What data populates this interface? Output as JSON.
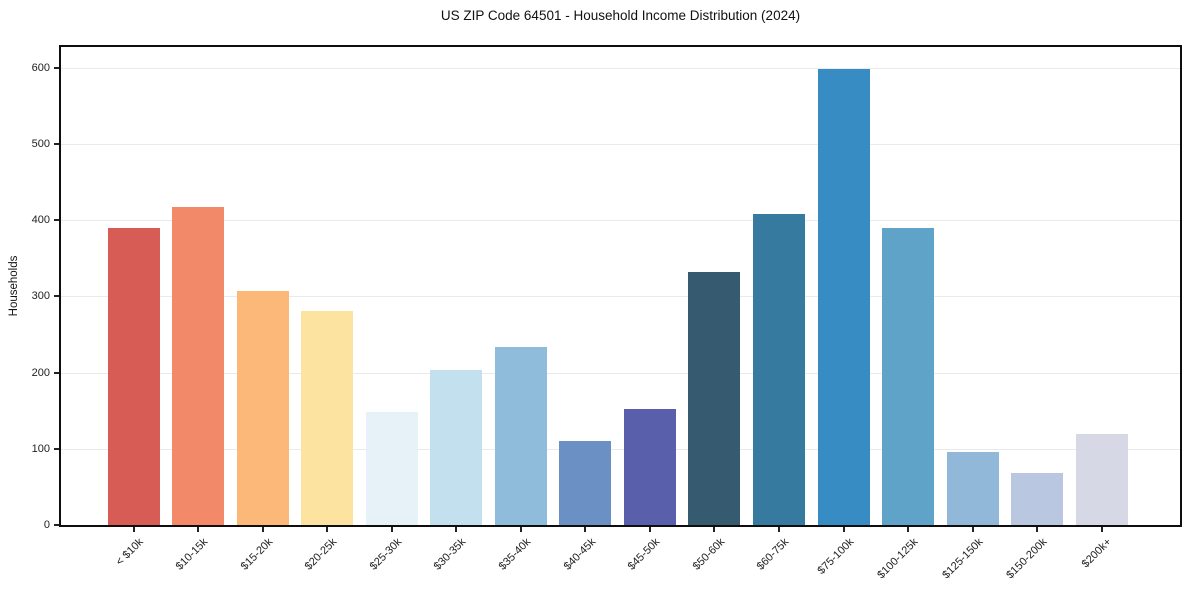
{
  "chart_data": {
    "type": "bar",
    "title": "US ZIP Code 64501 - Household Income Distribution (2024)",
    "xlabel": "",
    "ylabel": "Households",
    "categories": [
      "< $10k",
      "$10-15k",
      "$15-20k",
      "$20-25k",
      "$25-30k",
      "$30-35k",
      "$35-40k",
      "$40-45k",
      "$45-50k",
      "$50-60k",
      "$60-75k",
      "$75-100k",
      "$100-125k",
      "$125-150k",
      "$150-200k",
      "$200k+"
    ],
    "values": [
      390,
      417,
      307,
      281,
      148,
      203,
      233,
      110,
      152,
      332,
      408,
      598,
      390,
      96,
      68,
      120
    ],
    "bar_colors": [
      "#d65c55",
      "#f28968",
      "#fbb878",
      "#fde3a0",
      "#e7f2f8",
      "#c2e0ee",
      "#8fbcdb",
      "#6a90c4",
      "#595fab",
      "#365a70",
      "#377a9f",
      "#388cc4",
      "#60a3c8",
      "#92b8d9",
      "#b9c8e0",
      "#d7d8e5"
    ],
    "yticks": [
      0,
      100,
      200,
      300,
      400,
      500,
      600
    ],
    "ylim": [
      0,
      627
    ],
    "grid": "horizontal-only",
    "grid_color": "#e9e9f1",
    "spine_color": "#0e0e0e",
    "background_color": "#ffffff",
    "legend": "none"
  }
}
